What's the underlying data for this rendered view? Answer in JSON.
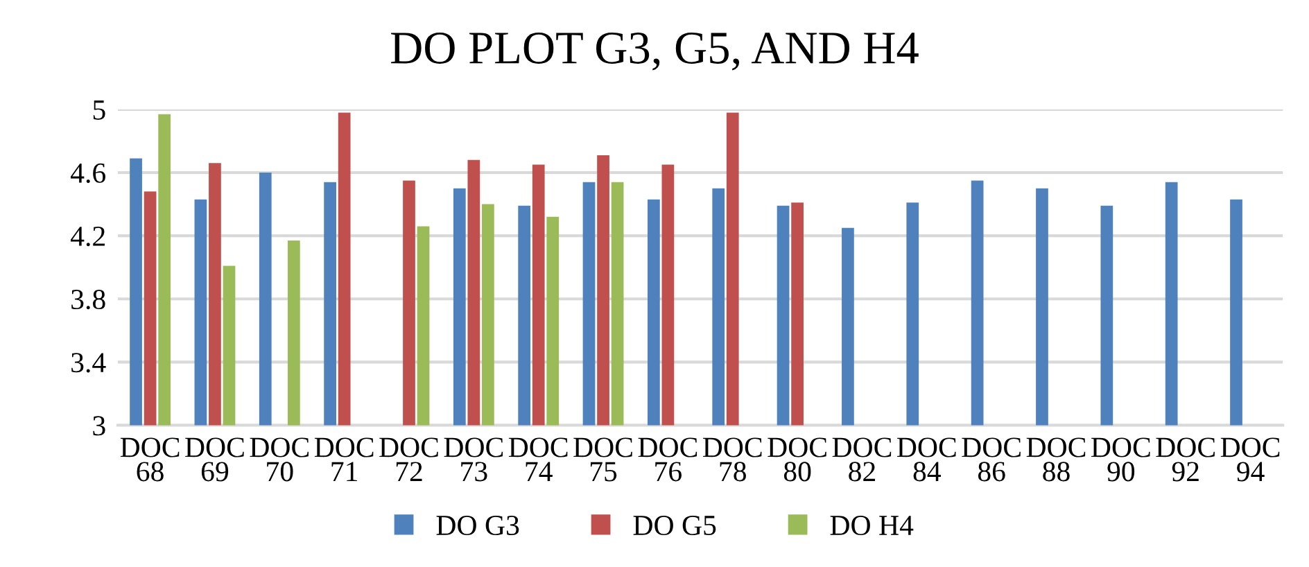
{
  "chart_data": {
    "type": "bar",
    "title": "DO PLOT G3, G5, AND H4",
    "categories": [
      "DOC\n68",
      "DOC\n69",
      "DOC\n70",
      "DOC\n71",
      "DOC\n72",
      "DOC\n73",
      "DOC\n74",
      "DOC\n75",
      "DOC\n76",
      "DOC\n78",
      "DOC\n80",
      "DOC\n82",
      "DOC\n84",
      "DOC\n86",
      "DOC\n88",
      "DOC\n90",
      "DOC\n92",
      "DOC\n94"
    ],
    "series": [
      {
        "name": "DO G3",
        "color": "#4f81bd",
        "values": [
          4.69,
          4.43,
          4.6,
          4.54,
          null,
          4.5,
          4.39,
          4.54,
          4.43,
          4.5,
          4.39,
          4.25,
          4.41,
          4.55,
          4.5,
          4.39,
          4.54,
          4.43
        ]
      },
      {
        "name": "DO G5",
        "color": "#c0504d",
        "values": [
          4.48,
          4.66,
          null,
          4.98,
          4.55,
          4.68,
          4.65,
          4.71,
          4.65,
          4.98,
          4.41,
          null,
          null,
          null,
          null,
          null,
          null,
          null
        ]
      },
      {
        "name": "DO H4",
        "color": "#9bbb59",
        "values": [
          4.97,
          4.01,
          4.17,
          null,
          4.26,
          4.4,
          4.32,
          4.54,
          null,
          null,
          null,
          null,
          null,
          null,
          null,
          null,
          null,
          null
        ]
      }
    ],
    "ylim": [
      3,
      5
    ],
    "yticks": [
      3,
      3.4,
      3.8,
      4.2,
      4.6,
      5
    ],
    "grid": "y",
    "legend": "bottom"
  }
}
